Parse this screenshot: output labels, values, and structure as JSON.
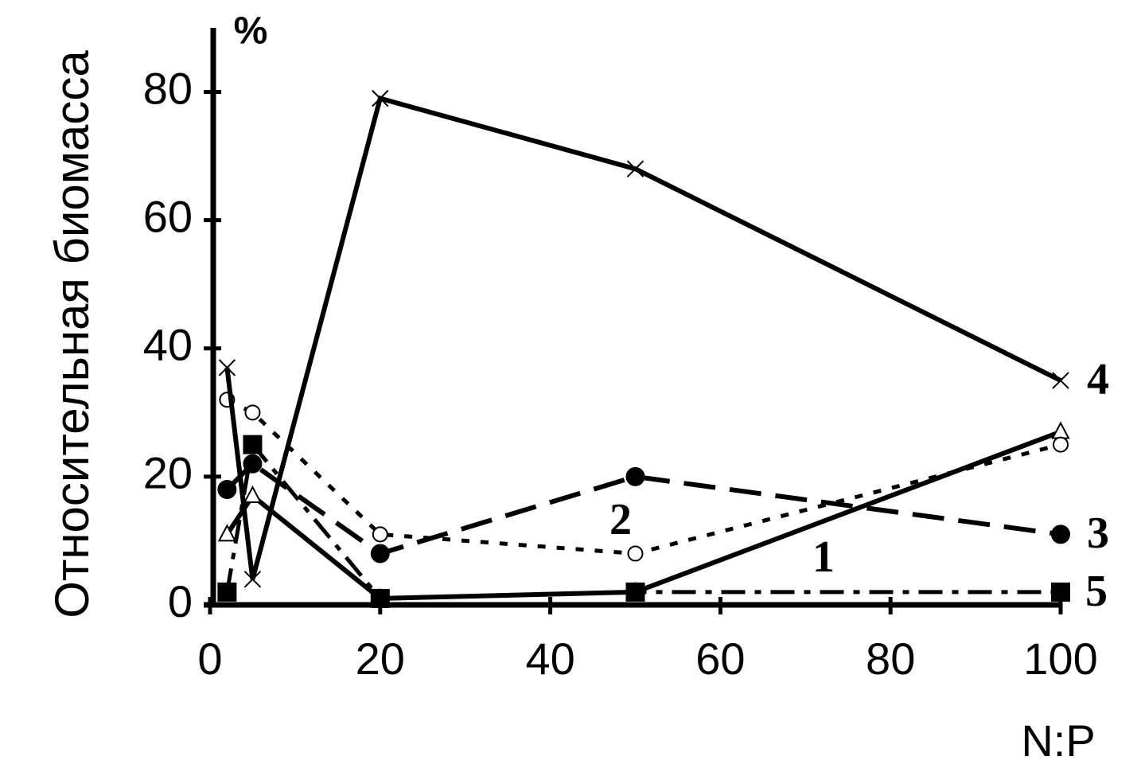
{
  "chart_data": {
    "type": "line",
    "y_label": "Относительная биомасса",
    "y_unit": "%",
    "x_label": "N:P",
    "x": [
      2,
      5,
      20,
      50,
      100
    ],
    "xlim": [
      0,
      100
    ],
    "xticks": [
      0,
      20,
      40,
      60,
      80,
      100
    ],
    "ylim": [
      0,
      90
    ],
    "yticks": [
      0,
      20,
      40,
      60,
      80
    ],
    "series": [
      {
        "name": "1",
        "color": "#000000",
        "marker": "triangle-open",
        "dash": "solid",
        "values": [
          11,
          17,
          1,
          2,
          27
        ]
      },
      {
        "name": "2",
        "color": "#000000",
        "marker": "circle-open",
        "dash": "dotted",
        "values": [
          32,
          30,
          11,
          8,
          25
        ]
      },
      {
        "name": "3",
        "color": "#000000",
        "marker": "circle-filled",
        "dash": "dashed",
        "values": [
          18,
          22,
          8,
          20,
          11
        ]
      },
      {
        "name": "4",
        "color": "#000000",
        "marker": "x",
        "dash": "solid",
        "values": [
          37,
          4,
          79,
          68,
          35
        ]
      },
      {
        "name": "5",
        "color": "#000000",
        "marker": "square-filled",
        "dash": "dashdot",
        "values": [
          2,
          25,
          1,
          2,
          2
        ]
      }
    ]
  }
}
